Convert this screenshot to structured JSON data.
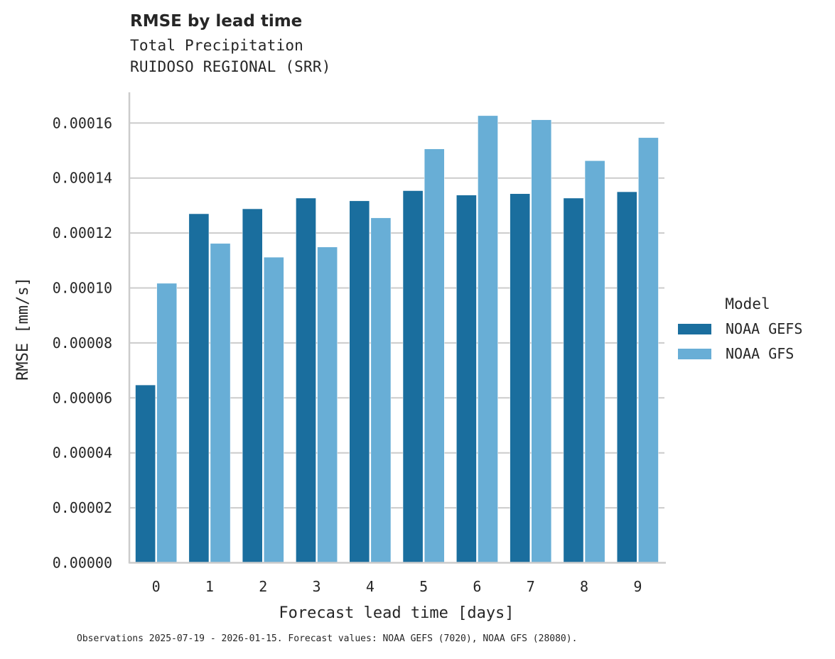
{
  "chart_data": {
    "type": "bar",
    "title": "RMSE by lead time",
    "subtitle_lines": [
      "Total Precipitation",
      "RUIDOSO REGIONAL (SRR)"
    ],
    "xlabel": "Forecast lead time [days]",
    "ylabel": "RMSE [mm/s]",
    "categories": [
      "0",
      "1",
      "2",
      "3",
      "4",
      "5",
      "6",
      "7",
      "8",
      "9"
    ],
    "series": [
      {
        "name": "NOAA GEFS",
        "color": "#1a6e9e",
        "values": [
          6.47e-05,
          0.000127,
          0.0001288,
          0.0001327,
          0.0001317,
          0.0001354,
          0.0001338,
          0.0001343,
          0.0001327,
          0.000135
        ]
      },
      {
        "name": "NOAA GFS",
        "color": "#68aed6",
        "values": [
          0.0001017,
          0.0001162,
          0.0001112,
          0.0001149,
          0.0001255,
          0.0001506,
          0.0001627,
          0.0001612,
          0.0001463,
          0.0001547
        ]
      }
    ],
    "yticks": [
      "0.00000",
      "0.00002",
      "0.00004",
      "0.00006",
      "0.00008",
      "0.00010",
      "0.00012",
      "0.00014",
      "0.00016"
    ],
    "ylim": [
      0,
      0.0001714
    ],
    "grid": "horizontal",
    "legend": {
      "title": "Model",
      "position": "right"
    }
  },
  "header": {
    "title": "RMSE by lead time",
    "subtitle1": "Total Precipitation",
    "subtitle2": "RUIDOSO REGIONAL (SRR)"
  },
  "footnote": "Observations 2025-07-19 - 2026-01-15. Forecast values: NOAA GEFS (7020), NOAA GFS (28080).",
  "colors": {
    "gefs": "#1a6e9e",
    "gfs": "#68aed6",
    "grid": "#cccccc",
    "text": "#262626"
  }
}
